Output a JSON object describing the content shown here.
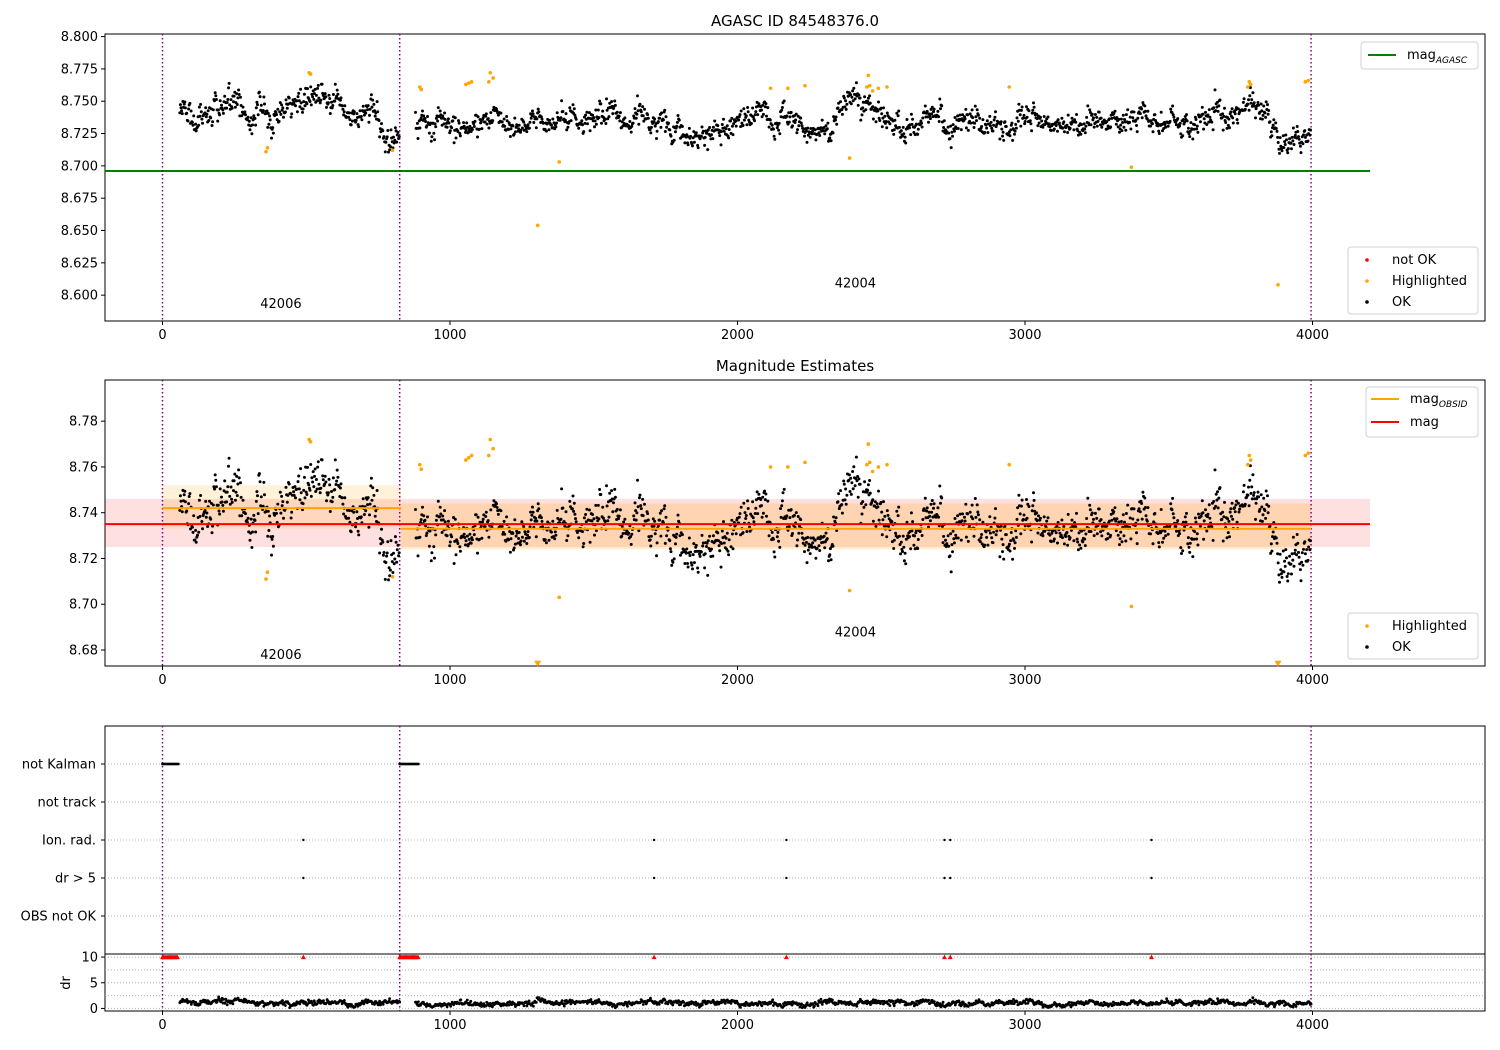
{
  "chart_data": [
    {
      "type": "scatter",
      "title": "AGASC ID 84548376.0",
      "xlim": [
        -200,
        4600
      ],
      "ylim": [
        8.58,
        8.802
      ],
      "xticks": [
        0,
        1000,
        2000,
        3000,
        4000
      ],
      "yticks": [
        8.6,
        8.625,
        8.65,
        8.675,
        8.7,
        8.725,
        8.75,
        8.775,
        8.8
      ],
      "ytick_labels": [
        "8.600",
        "8.625",
        "8.650",
        "8.675",
        "8.700",
        "8.725",
        "8.750",
        "8.775",
        "8.800"
      ],
      "hlines": [
        {
          "name": "mag_AGASC",
          "label_main": "mag",
          "label_sub": "AGASC",
          "y": 8.696,
          "x": [
            -200,
            4200
          ],
          "color": "#008000"
        }
      ],
      "vlines": [
        0,
        825,
        3995
      ],
      "vline_color": "#800080",
      "obsid_labels": [
        {
          "text": "42006",
          "x": 412,
          "y": 8.59
        },
        {
          "text": "42004",
          "x": 2410,
          "y": 8.606
        }
      ],
      "segments": [
        {
          "x_start": 60,
          "x_end": 825,
          "base": 8.742,
          "noise": 0.008
        },
        {
          "x_start": 880,
          "x_end": 3995,
          "base": 8.733,
          "noise": 0.007
        }
      ],
      "highlighted": {
        "x": [
          360,
          365,
          510,
          515,
          800,
          895,
          900,
          1055,
          1065,
          1075,
          1135,
          1140,
          1150,
          1305,
          1380,
          2115,
          2175,
          2235,
          2390,
          2450,
          2455,
          2460,
          2470,
          2490,
          2520,
          2945,
          3370,
          3775,
          3780,
          3785,
          3880,
          3975,
          3985
        ],
        "y": [
          8.711,
          8.714,
          8.772,
          8.771,
          8.712,
          8.761,
          8.759,
          8.763,
          8.764,
          8.765,
          8.765,
          8.772,
          8.768,
          8.654,
          8.703,
          8.76,
          8.76,
          8.762,
          8.706,
          8.761,
          8.77,
          8.762,
          8.758,
          8.76,
          8.761,
          8.761,
          8.699,
          8.761,
          8.765,
          8.763,
          8.608,
          8.765,
          8.766
        ]
      },
      "legends": [
        {
          "position": "upper right",
          "entries": [
            {
              "label": "mag_AGASC",
              "label_main": "mag",
              "label_sub": "AGASC",
              "kind": "line",
              "color": "#008000"
            }
          ]
        },
        {
          "position": "lower right",
          "entries": [
            {
              "label": "not OK",
              "kind": "point",
              "color": "#ff0000"
            },
            {
              "label": "Highlighted",
              "kind": "point",
              "color": "#ffa500"
            },
            {
              "label": "OK",
              "kind": "point",
              "color": "#000000"
            }
          ]
        }
      ],
      "colors": {
        "ok": "#000000",
        "highlighted": "#ffa500",
        "not_ok": "#ff0000"
      }
    },
    {
      "type": "scatter",
      "title": "Magnitude Estimates",
      "xlim": [
        -200,
        4600
      ],
      "ylim": [
        8.673,
        8.798
      ],
      "xticks": [
        0,
        1000,
        2000,
        3000,
        4000
      ],
      "yticks": [
        8.68,
        8.7,
        8.72,
        8.74,
        8.76,
        8.78
      ],
      "ytick_labels": [
        "8.68",
        "8.70",
        "8.72",
        "8.74",
        "8.76",
        "8.78"
      ],
      "bands": [
        {
          "name": "mag",
          "y": 8.735,
          "y_low": 8.725,
          "y_high": 8.746,
          "x": [
            -200,
            4200
          ],
          "color": "#ff0000",
          "band_color": "#ff0000",
          "band_opacity": 0.12
        },
        {
          "name": "mag_OBSID 42006",
          "y": 8.742,
          "y_low": 8.733,
          "y_high": 8.752,
          "x": [
            0,
            830
          ],
          "color": "#ffa500",
          "band_color": "#ffa500",
          "band_opacity": 0.15
        },
        {
          "name": "mag_OBSID 42004",
          "y": 8.733,
          "y_low": 8.724,
          "y_high": 8.744,
          "x": [
            830,
            3995
          ],
          "color": "#ffa500",
          "band_color": "#ffa500",
          "band_opacity": 0.2
        }
      ],
      "vlines": [
        0,
        825,
        3995
      ],
      "vline_color": "#800080",
      "obsid_labels": [
        {
          "text": "42006",
          "x": 412,
          "y": 8.676
        },
        {
          "text": "42004",
          "x": 2410,
          "y": 8.686
        }
      ],
      "segments": [
        {
          "x_start": 60,
          "x_end": 825,
          "base": 8.742,
          "noise": 0.008
        },
        {
          "x_start": 880,
          "x_end": 3995,
          "base": 8.733,
          "noise": 0.007
        }
      ],
      "highlighted": {
        "x": [
          360,
          365,
          510,
          515,
          800,
          895,
          900,
          1055,
          1065,
          1075,
          1135,
          1140,
          1150,
          1380,
          2115,
          2175,
          2235,
          2390,
          2450,
          2455,
          2460,
          2470,
          2490,
          2520,
          2945,
          3370,
          3775,
          3780,
          3785,
          3975,
          3985
        ],
        "y": [
          8.711,
          8.714,
          8.772,
          8.771,
          8.712,
          8.761,
          8.759,
          8.763,
          8.764,
          8.765,
          8.765,
          8.772,
          8.768,
          8.703,
          8.76,
          8.76,
          8.762,
          8.706,
          8.761,
          8.77,
          8.762,
          8.758,
          8.76,
          8.761,
          8.761,
          8.699,
          8.761,
          8.765,
          8.763,
          8.765,
          8.766
        ]
      },
      "out_of_range_markers": {
        "x": [
          1305,
          3880
        ],
        "y_edge": 8.674,
        "color": "#ffa500"
      },
      "legends": [
        {
          "position": "upper right",
          "entries": [
            {
              "label": "mag_OBSID",
              "label_main": "mag",
              "label_sub": "OBSID",
              "kind": "line",
              "color": "#ffa500"
            },
            {
              "label": "mag",
              "label_main": "mag",
              "label_sub": "",
              "kind": "line",
              "color": "#ff0000"
            }
          ]
        },
        {
          "position": "lower right",
          "entries": [
            {
              "label": "Highlighted",
              "kind": "point",
              "color": "#ffa500"
            },
            {
              "label": "OK",
              "kind": "point",
              "color": "#000000"
            }
          ]
        }
      ],
      "colors": {
        "ok": "#000000",
        "highlighted": "#ffa500"
      }
    },
    {
      "type": "scatter",
      "title": "",
      "xlim": [
        -200,
        4600
      ],
      "xticks": [
        0,
        1000,
        2000,
        3000,
        4000
      ],
      "flag_rows": [
        "not Kalman",
        "not track",
        "Ion. rad.",
        "dr > 5",
        "OBS not OK"
      ],
      "flags": {
        "not Kalman": {
          "x_ranges": [
            [
              0,
              55
            ],
            [
              825,
              890
            ]
          ],
          "x": []
        },
        "not track": {
          "x_ranges": [],
          "x": []
        },
        "Ion. rad.": {
          "x_ranges": [],
          "x": [
            490,
            1710,
            2170,
            2720,
            2740,
            3440
          ]
        },
        "dr > 5": {
          "x_ranges": [],
          "x": [
            490,
            1710,
            2170,
            2720,
            2740,
            3440
          ]
        },
        "OBS not OK": {
          "x_ranges": [],
          "x": []
        }
      },
      "vlines": [
        0,
        825,
        3995
      ],
      "vline_color": "#800080",
      "dr_panel": {
        "ylabel": "dr",
        "ylim": [
          -0.5,
          10.6
        ],
        "yticks": [
          0,
          5,
          10
        ],
        "minor_gridlines": [
          2.5,
          7.5
        ],
        "red_marker_value": 10,
        "red_marker_x_ranges": [
          [
            0,
            55
          ],
          [
            825,
            890
          ]
        ],
        "red_marker_x": [
          490,
          1710,
          2170,
          2720,
          2740,
          3440
        ],
        "red_color": "#ff0000",
        "segments": [
          {
            "x_start": 60,
            "x_end": 825,
            "base": 1.1,
            "noise": 0.5
          },
          {
            "x_start": 880,
            "x_end": 3995,
            "base": 1.0,
            "noise": 0.5
          }
        ]
      }
    }
  ]
}
